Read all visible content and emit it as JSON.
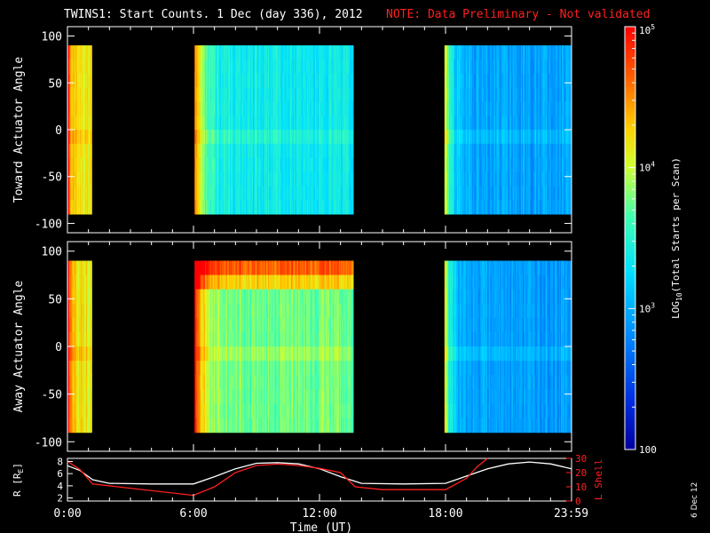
{
  "title": "TWINS1: Start Counts.  1 Dec (day 336), 2012",
  "note": "NOTE: Data Preliminary - Not validated",
  "footer_date": "6 Dec 12",
  "colors": {
    "note": "#ff2020",
    "axis": "#ffffff",
    "r_line": "#ffffff",
    "l_line": "#ff2020"
  },
  "chart_data": [
    {
      "type": "heatmap",
      "name": "toward",
      "ylabel": "Toward Actuator Angle",
      "ylim": [
        -110,
        110
      ],
      "yticks": [
        100,
        50,
        0,
        -50,
        -100
      ],
      "ytick_labels": [
        "100",
        "50",
        "0",
        "-50",
        "-100"
      ],
      "xlim": [
        0,
        24
      ],
      "angle_range": [
        -90,
        90
      ],
      "segments": [
        {
          "start": 0.0,
          "end": 1.15,
          "log_level": 4.05
        },
        {
          "start": 6.05,
          "end": 13.6,
          "log_level": 3.35
        },
        {
          "start": 17.95,
          "end": 23.99,
          "log_level": 2.95
        }
      ]
    },
    {
      "type": "heatmap",
      "name": "away",
      "ylabel": "Away Actuator Angle",
      "ylim": [
        -110,
        110
      ],
      "yticks": [
        100,
        50,
        0,
        -50,
        -100
      ],
      "ytick_labels": [
        "100",
        "50",
        "0",
        "-50",
        "-100"
      ],
      "xlim": [
        0,
        24
      ],
      "angle_range": [
        -90,
        90
      ],
      "segments": [
        {
          "start": 0.0,
          "end": 1.15,
          "log_level": 4.1
        },
        {
          "start": 6.05,
          "end": 13.6,
          "log_level": 3.75
        },
        {
          "start": 17.95,
          "end": 23.99,
          "log_level": 2.9
        }
      ]
    },
    {
      "type": "line",
      "name": "orbit",
      "ylabel_left": "R [R",
      "ylabel_left_sub": "E",
      "ylabel_left_end": "]",
      "ylabel_right": "L Shell",
      "yticks_left": [
        "8",
        "6",
        "4",
        "2"
      ],
      "yticks_right": [
        "30",
        "20",
        "10",
        "0"
      ],
      "ylim_left": [
        1.5,
        8.5
      ],
      "ylim_right": [
        0,
        30
      ],
      "xlim": [
        0,
        24
      ],
      "xlabel": "Time (UT)",
      "xtick_labels": [
        "0:00",
        "6:00",
        "12:00",
        "18:00",
        "23:59"
      ],
      "xticks": [
        0,
        6,
        12,
        18,
        23.98
      ],
      "series": [
        {
          "name": "R",
          "axis": "left",
          "x": [
            0,
            0.6,
            1.2,
            2,
            4,
            6,
            7,
            8,
            9,
            10,
            11,
            12,
            13,
            14,
            16,
            18,
            19,
            20,
            21,
            22,
            23,
            24
          ],
          "y": [
            7.3,
            6.5,
            5.0,
            4.4,
            4.3,
            4.3,
            5.5,
            6.8,
            7.7,
            7.8,
            7.6,
            6.8,
            5.5,
            4.4,
            4.3,
            4.4,
            5.6,
            6.8,
            7.6,
            7.9,
            7.6,
            6.8
          ]
        },
        {
          "name": "L Shell",
          "axis": "right",
          "x": [
            0,
            0.6,
            1.2,
            3,
            6,
            7,
            8,
            9,
            10,
            11,
            12,
            13,
            13.7,
            15,
            18,
            19,
            19.5,
            20
          ],
          "y": [
            28,
            22,
            12,
            9,
            4,
            10,
            20,
            25,
            26,
            25,
            23,
            20,
            10,
            8,
            8,
            16,
            24,
            31
          ]
        }
      ]
    }
  ],
  "colorbar": {
    "label": "LOG",
    "label_sub": "10",
    "label_end": "(Total Starts per Scan)",
    "range_log": [
      2,
      5
    ],
    "ticks": [
      {
        "log": 5,
        "text": "10",
        "sup": "5"
      },
      {
        "log": 4,
        "text": "10",
        "sup": "4"
      },
      {
        "log": 3,
        "text": "10",
        "sup": "3"
      },
      {
        "log": 2,
        "text": "100",
        "sup": ""
      }
    ]
  }
}
